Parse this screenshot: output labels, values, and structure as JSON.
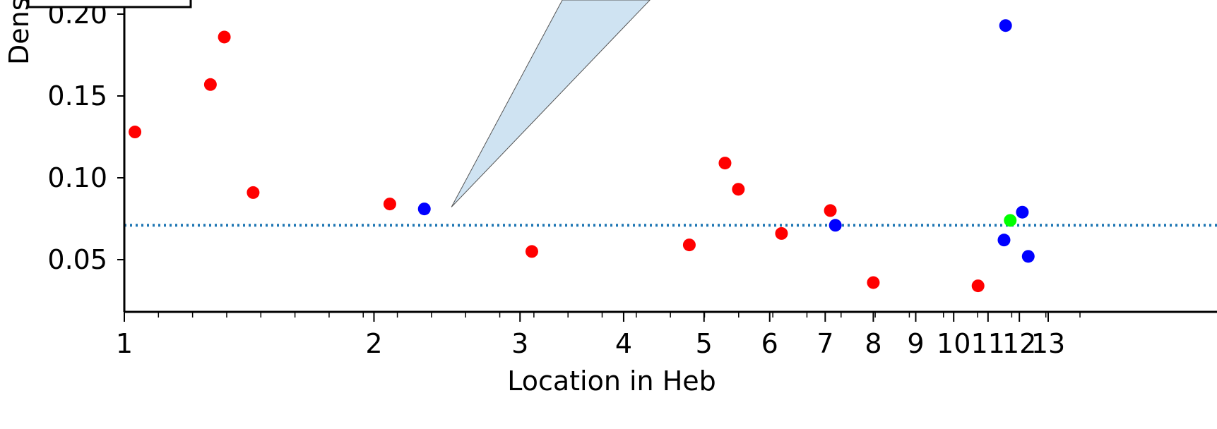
{
  "chart_data": {
    "type": "scatter",
    "title": "",
    "xlabel": "Location in Heb",
    "ylabel": "Dens",
    "x_scale": "log",
    "xlim": [
      1,
      14.3
    ],
    "ylim": [
      0.016,
      0.214
    ],
    "x_ticks": [
      1,
      2,
      3,
      4,
      5,
      6,
      7,
      8,
      9,
      10,
      11,
      12,
      13
    ],
    "x_tick_labels": [
      "1",
      "2",
      "3",
      "4",
      "5",
      "6",
      "7",
      "8",
      "9",
      "10",
      "11",
      "12",
      "13"
    ],
    "y_ticks": [
      0.05,
      0.1,
      0.15,
      0.2
    ],
    "y_tick_labels": [
      "0.05",
      "0.10",
      "0.15",
      "0.20"
    ],
    "reference_line": {
      "y": 0.071,
      "color": "#1f77b4",
      "style": "dotted"
    },
    "callout_wedge": {
      "anchor_x": 2.48,
      "anchor_y": 0.08,
      "fill": "#cfe3f2"
    },
    "legend_box": {
      "placement": "top-left",
      "text": ""
    },
    "series": [
      {
        "color": "#ff0000",
        "points": [
          [
            1.03,
            0.128
          ],
          [
            1.27,
            0.157
          ],
          [
            1.32,
            0.186
          ],
          [
            1.43,
            0.091
          ],
          [
            2.09,
            0.084
          ],
          [
            3.1,
            0.055
          ],
          [
            4.8,
            0.059
          ],
          [
            5.3,
            0.109
          ],
          [
            5.5,
            0.093
          ],
          [
            6.2,
            0.066
          ],
          [
            7.1,
            0.08
          ],
          [
            8.0,
            0.036
          ],
          [
            10.7,
            0.034
          ]
        ]
      },
      {
        "color": "#0000ff",
        "points": [
          [
            2.3,
            0.081
          ],
          [
            7.2,
            0.071
          ],
          [
            11.5,
            0.062
          ],
          [
            11.55,
            0.193
          ],
          [
            12.1,
            0.079
          ],
          [
            12.3,
            0.052
          ]
        ]
      },
      {
        "color": "#00ff00",
        "points": [
          [
            11.7,
            0.074
          ]
        ]
      }
    ]
  }
}
